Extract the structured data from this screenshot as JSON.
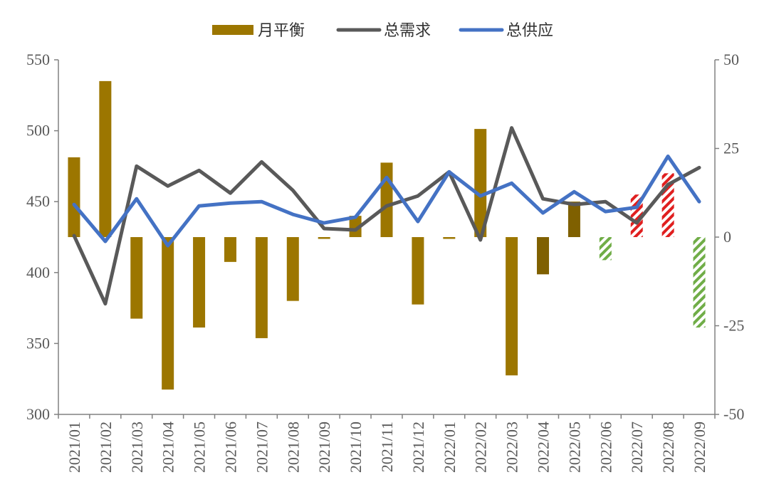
{
  "chart_data": {
    "type": "bar+line",
    "categories": [
      "2021/01",
      "2021/02",
      "2021/03",
      "2021/04",
      "2021/05",
      "2021/06",
      "2021/07",
      "2021/08",
      "2021/09",
      "2021/10",
      "2021/11",
      "2021/12",
      "2022/01",
      "2022/02",
      "2022/03",
      "2022/04",
      "2022/05",
      "2022/06",
      "2022/07",
      "2022/08",
      "2022/09"
    ],
    "legend": {
      "placement": "top-center",
      "entries": [
        {
          "label": "月平衡",
          "kind": "bar",
          "color": "#9C7600"
        },
        {
          "label": "总需求",
          "kind": "line",
          "color": "#595959"
        },
        {
          "label": "总供应",
          "kind": "line",
          "color": "#4472C4"
        }
      ]
    },
    "left_axis": {
      "range": [
        300,
        550
      ],
      "ticks": [
        "300",
        "350",
        "400",
        "450",
        "500",
        "550"
      ]
    },
    "right_axis": {
      "range": [
        -50,
        50
      ],
      "ticks": [
        "-50",
        "-25",
        "0",
        "25",
        "50"
      ]
    },
    "series": [
      {
        "name": "月平衡",
        "type": "bar",
        "axis": "right",
        "color": "#9C7600",
        "values": [
          22.5,
          44,
          -23,
          -43,
          -25.5,
          -7,
          -28.5,
          -18,
          -0.5,
          6,
          21,
          -19,
          -0.5,
          30.5,
          -39,
          -10.5,
          10,
          -6.5,
          12,
          18,
          -25.5
        ],
        "styles": [
          "solid",
          "solid",
          "solid",
          "solid",
          "solid",
          "solid",
          "solid",
          "solid",
          "solid",
          "solid",
          "solid",
          "solid",
          "solid",
          "solid",
          "solid",
          "dark",
          "dark",
          "hatch-green",
          "hatch-red",
          "hatch-red",
          "hatch-green"
        ]
      },
      {
        "name": "总需求",
        "type": "line",
        "axis": "left",
        "color": "#595959",
        "values": [
          426,
          378,
          475,
          461,
          472,
          456,
          478,
          458,
          431,
          430,
          447,
          454,
          471,
          423,
          502,
          452,
          448,
          450,
          435,
          462,
          474
        ]
      },
      {
        "name": "总供应",
        "type": "line",
        "axis": "left",
        "color": "#4472C4",
        "values": [
          448,
          422,
          452,
          419,
          447,
          449,
          450,
          441,
          435,
          439,
          467,
          436,
          471,
          454,
          463,
          442,
          457,
          443,
          446,
          482,
          450
        ]
      }
    ],
    "grid": false
  }
}
